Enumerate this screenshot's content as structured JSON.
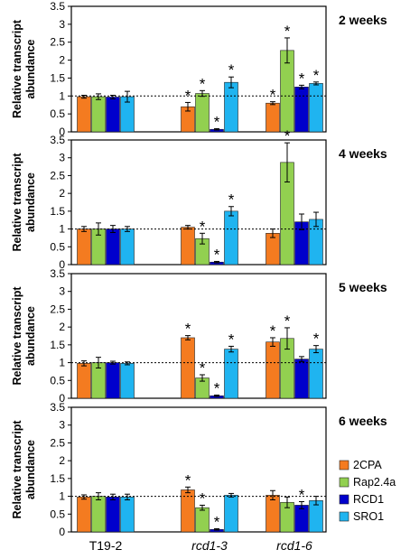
{
  "chart_data": {
    "type": "bar",
    "ylabel": "Relative transcript abundance",
    "ylim": [
      0,
      3.5
    ],
    "yticks": [
      "0",
      "0.5",
      "1",
      "1.5",
      "2",
      "2.5",
      "3",
      "3.5"
    ],
    "reference_line": 1,
    "categories": [
      "T19-2",
      "rcd1-3",
      "rcd1-6"
    ],
    "categories_italic": [
      false,
      true,
      true
    ],
    "legend": [
      {
        "name": "2CPA",
        "color": "#f47b20"
      },
      {
        "name": "Rap2.4a",
        "color": "#92d050"
      },
      {
        "name": "RCD1",
        "color": "#0000cc"
      },
      {
        "name": "SRO1",
        "color": "#1fb4f0"
      }
    ],
    "significance_marker": "*",
    "panels": [
      {
        "title": "2 weeks",
        "values": [
          [
            0.98,
            0.98,
            0.97,
            0.98
          ],
          [
            0.7,
            1.07,
            0.07,
            1.38
          ],
          [
            0.8,
            2.27,
            1.25,
            1.35
          ]
        ],
        "errors": [
          [
            0.04,
            0.08,
            0.05,
            0.15
          ],
          [
            0.12,
            0.08,
            0.02,
            0.15
          ],
          [
            0.04,
            0.35,
            0.05,
            0.04
          ]
        ],
        "sig": [
          [
            false,
            false,
            false,
            false
          ],
          [
            true,
            true,
            true,
            true
          ],
          [
            true,
            true,
            true,
            true
          ]
        ]
      },
      {
        "title": "4 weeks",
        "values": [
          [
            1.0,
            1.0,
            1.0,
            1.0
          ],
          [
            1.05,
            0.73,
            0.07,
            1.5
          ],
          [
            0.88,
            2.87,
            1.2,
            1.27
          ]
        ],
        "errors": [
          [
            0.07,
            0.17,
            0.1,
            0.07
          ],
          [
            0.05,
            0.15,
            0.02,
            0.13
          ],
          [
            0.12,
            0.55,
            0.22,
            0.2
          ]
        ],
        "sig": [
          [
            false,
            false,
            false,
            false
          ],
          [
            false,
            true,
            true,
            true
          ],
          [
            false,
            true,
            false,
            false
          ]
        ]
      },
      {
        "title": "5 weeks",
        "values": [
          [
            0.98,
            1.0,
            1.0,
            0.98
          ],
          [
            1.7,
            0.57,
            0.07,
            1.38
          ],
          [
            1.58,
            1.68,
            1.1,
            1.38
          ]
        ],
        "errors": [
          [
            0.07,
            0.15,
            0.04,
            0.04
          ],
          [
            0.06,
            0.09,
            0.02,
            0.08
          ],
          [
            0.12,
            0.3,
            0.07,
            0.1
          ]
        ],
        "sig": [
          [
            false,
            false,
            false,
            false
          ],
          [
            true,
            true,
            true,
            true
          ],
          [
            true,
            true,
            false,
            true
          ]
        ]
      },
      {
        "title": "6 weeks",
        "values": [
          [
            0.98,
            1.0,
            0.98,
            0.98
          ],
          [
            1.18,
            0.68,
            0.07,
            1.03
          ],
          [
            1.03,
            0.83,
            0.75,
            0.88
          ]
        ],
        "errors": [
          [
            0.06,
            0.1,
            0.08,
            0.08
          ],
          [
            0.08,
            0.07,
            0.02,
            0.05
          ],
          [
            0.13,
            0.15,
            0.1,
            0.12
          ]
        ],
        "sig": [
          [
            false,
            false,
            false,
            false
          ],
          [
            true,
            true,
            true,
            false
          ],
          [
            false,
            false,
            true,
            false
          ]
        ]
      }
    ]
  }
}
